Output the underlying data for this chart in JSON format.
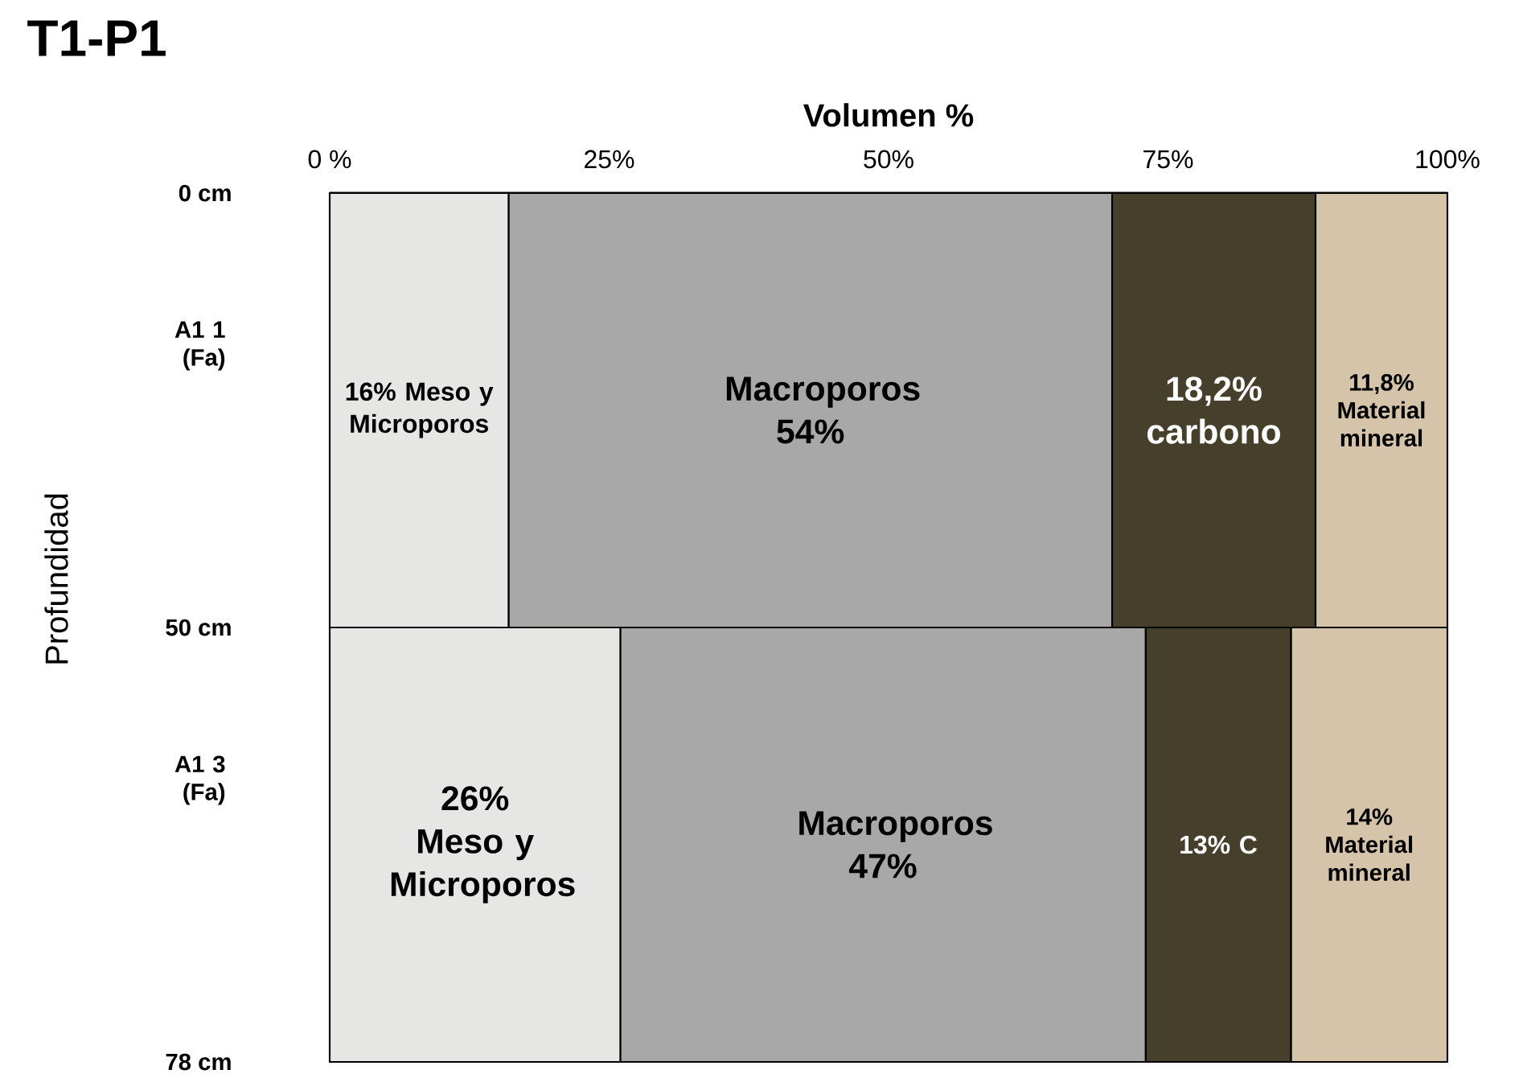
{
  "chart_data": {
    "type": "bar",
    "orientation": "horizontal",
    "stacked": true,
    "title": "T1-P1",
    "xlabel": "Volumen %",
    "ylabel": "Profundidad",
    "categories": [
      "A1 1 (Fa)",
      "A1 3 (Fa)"
    ],
    "series": [
      {
        "color": "#e6e6e4",
        "values": [
          16,
          26
        ],
        "value_labels": [
          "16% Meso y Microporos",
          "26% Meso y Microporos"
        ]
      },
      {
        "color": "#a8a8a8",
        "values": [
          54,
          47
        ],
        "value_labels": [
          "Macroporos 54%",
          "Macroporos 47%"
        ]
      },
      {
        "color": "#463f2b",
        "values": [
          18.2,
          13
        ],
        "value_labels": [
          "18,2% carbono",
          "13% C"
        ]
      },
      {
        "color": "#d5c4aa",
        "values": [
          11.8,
          14
        ],
        "value_labels": [
          "11,8% Material mineral",
          "14% Material mineral"
        ]
      }
    ],
    "xlim": [
      0,
      100
    ],
    "xticks": [
      {
        "value": 0,
        "label": "0 %"
      },
      {
        "value": 25,
        "label": "25%"
      },
      {
        "value": 50,
        "label": "50%"
      },
      {
        "value": 75,
        "label": "75%"
      },
      {
        "value": 100,
        "label": "100%"
      }
    ],
    "annotations": [
      "0 cm",
      "50 cm",
      "78 cm"
    ]
  }
}
